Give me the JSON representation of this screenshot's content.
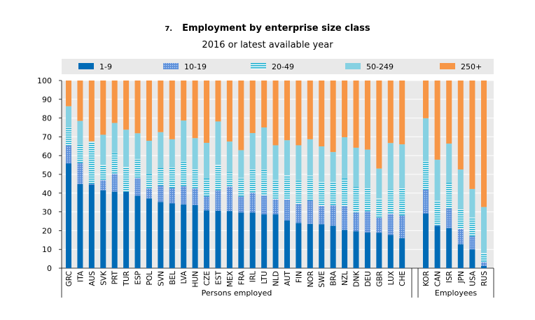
{
  "chart_data": {
    "type": "bar",
    "stacked": true,
    "title_number": "7.",
    "title": "Employment by enterprise size class",
    "subtitle": "2016 or latest available year",
    "ylim": [
      0,
      100
    ],
    "yticks": [
      0,
      10,
      20,
      30,
      40,
      50,
      60,
      70,
      80,
      90,
      100
    ],
    "grid": true,
    "legend_position": "top",
    "groups": [
      {
        "label": "Persons employed",
        "categories": [
          "GRC",
          "ITA",
          "AUS",
          "SVK",
          "PRT",
          "TUR",
          "ESP",
          "POL",
          "SVN",
          "BEL",
          "LVA",
          "HUN",
          "CZE",
          "EST",
          "MEX",
          "FRA",
          "IRL",
          "LTU",
          "NLD",
          "AUT",
          "FIN",
          "NOR",
          "SWE",
          "BRA",
          "NZL",
          "DNK",
          "DEU",
          "GBR",
          "LUX",
          "CHE"
        ]
      },
      {
        "label": "Employees",
        "categories": [
          "KOR",
          "CAN",
          "ISR",
          "JPN",
          "USA",
          "RUS"
        ]
      }
    ],
    "categories": [
      "GRC",
      "ITA",
      "AUS",
      "SVK",
      "PRT",
      "TUR",
      "ESP",
      "POL",
      "SVN",
      "BEL",
      "LVA",
      "HUN",
      "CZE",
      "EST",
      "MEX",
      "FRA",
      "IRL",
      "LTU",
      "NLD",
      "AUT",
      "FIN",
      "NOR",
      "SWE",
      "BRA",
      "NZL",
      "DNK",
      "DEU",
      "GBR",
      "LUX",
      "CHE",
      "KOR",
      "CAN",
      "ISR",
      "JPN",
      "USA",
      "RUS"
    ],
    "series": [
      {
        "name": "1-9",
        "color": "#006bb6",
        "values": [
          55.8,
          44.8,
          44.4,
          41.5,
          40.8,
          40.7,
          38.6,
          37.2,
          35.3,
          34.5,
          34.0,
          33.6,
          30.8,
          30.6,
          30.5,
          29.7,
          29.7,
          28.7,
          28.7,
          25.4,
          24.1,
          23.6,
          23.4,
          22.6,
          20.4,
          19.7,
          19.0,
          18.9,
          17.7,
          16.0,
          29.1,
          22.5,
          21.3,
          12.8,
          10.0,
          1.2
        ]
      },
      {
        "name": "10-19",
        "color": "#6b9be0",
        "values": [
          9.6,
          11.3,
          0.6,
          5.4,
          9.4,
          0.0,
          9.4,
          5.3,
          8.7,
          8.2,
          9.7,
          8.9,
          7.5,
          10.9,
          13.0,
          8.5,
          10.5,
          10.0,
          8.0,
          11.2,
          10.1,
          12.6,
          9.8,
          10.9,
          12.7,
          10.0,
          11.2,
          8.0,
          11.2,
          12.1,
          12.7,
          0.3,
          10.5,
          8.1,
          7.0,
          2.0
        ]
      },
      {
        "name": "20-49",
        "color": "#1fb0d0",
        "values": [
          9.5,
          9.7,
          22.4,
          8.1,
          11.1,
          13.3,
          10.7,
          7.5,
          9.4,
          10.9,
          13.3,
          10.1,
          9.5,
          13.6,
          7.5,
          9.9,
          12.3,
          13.7,
          10.3,
          12.9,
          12.6,
          13.4,
          12.7,
          12.4,
          14.7,
          13.5,
          12.7,
          10.3,
          13.0,
          14.8,
          15.7,
          13.1,
          13.8,
          10.9,
          10.2,
          4.8
        ]
      },
      {
        "name": "50-249",
        "color": "#86d1e2",
        "values": [
          11.4,
          12.7,
          0.2,
          16.1,
          16.1,
          19.8,
          13.2,
          17.9,
          19.1,
          15.1,
          21.7,
          16.7,
          19.0,
          23.1,
          16.5,
          14.8,
          19.5,
          22.6,
          18.5,
          18.7,
          18.7,
          19.1,
          19.0,
          16.0,
          22.0,
          21.0,
          20.3,
          15.9,
          24.8,
          23.1,
          22.4,
          21.9,
          20.8,
          20.8,
          15.0,
          24.6
        ]
      },
      {
        "name": "250+",
        "color": "#f79646",
        "values": [
          13.7,
          21.5,
          32.4,
          28.9,
          22.6,
          26.2,
          28.1,
          32.1,
          27.5,
          31.3,
          21.3,
          30.7,
          33.2,
          21.8,
          32.5,
          37.1,
          28.0,
          25.0,
          34.5,
          31.8,
          34.5,
          31.3,
          35.1,
          38.1,
          30.2,
          35.8,
          36.8,
          46.9,
          33.3,
          34.0,
          20.1,
          42.2,
          33.6,
          47.4,
          57.8,
          67.4
        ]
      }
    ]
  }
}
